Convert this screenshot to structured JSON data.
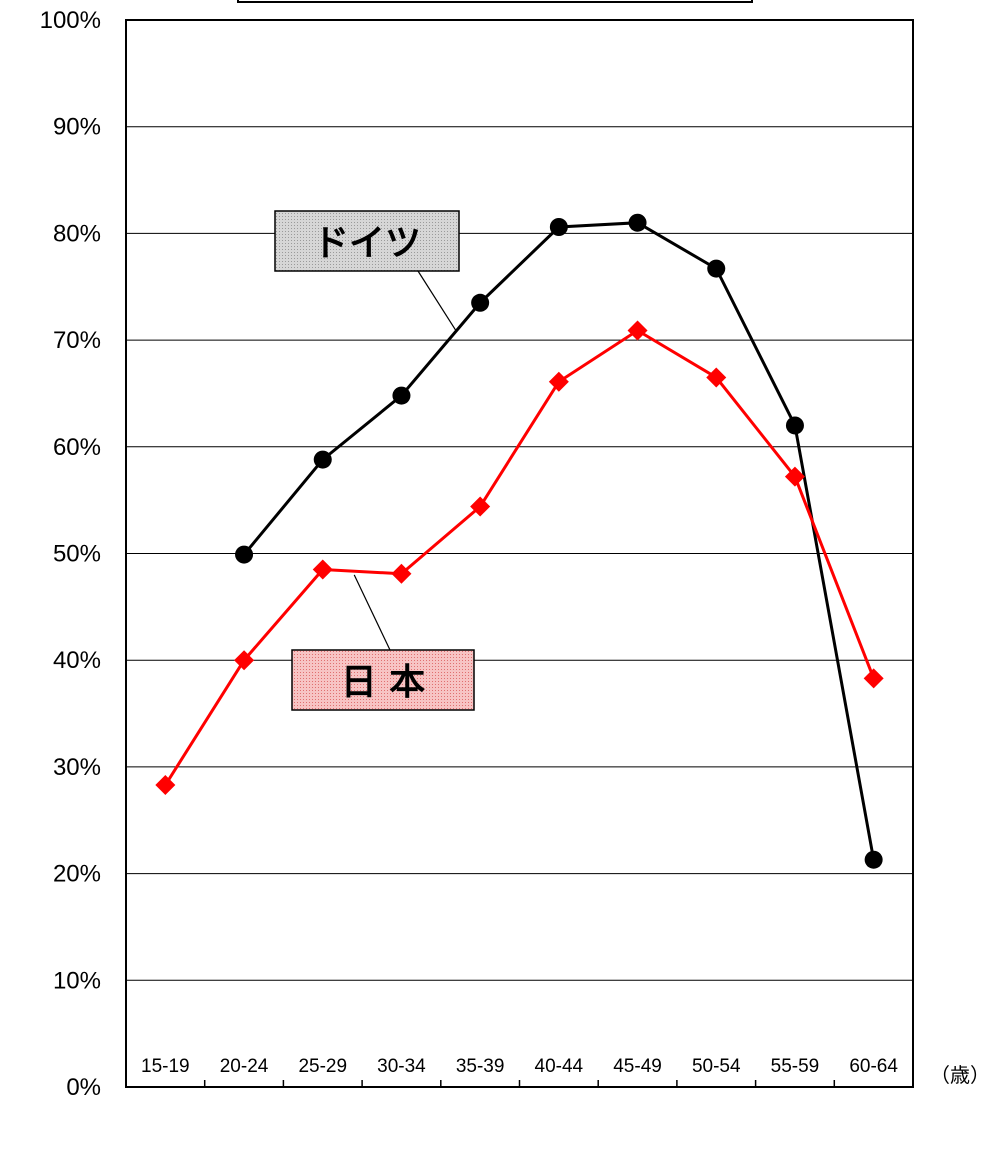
{
  "chart_data": {
    "type": "line",
    "title": "",
    "xlabel": "",
    "ylabel": "",
    "x_unit": "（歳）",
    "categories": [
      "15-19",
      "20-24",
      "25-29",
      "30-34",
      "35-39",
      "40-44",
      "45-49",
      "50-54",
      "55-59",
      "60-64"
    ],
    "y_ticks": [
      "0%",
      "10%",
      "20%",
      "30%",
      "40%",
      "50%",
      "60%",
      "70%",
      "80%",
      "90%",
      "100%"
    ],
    "ylim": [
      0,
      100
    ],
    "grid": true,
    "series": [
      {
        "name": "ドイツ",
        "color": "#000000",
        "marker": "circle",
        "label_fill": "#cccccc",
        "values": [
          null,
          49.9,
          58.8,
          64.8,
          73.5,
          80.6,
          81.0,
          76.7,
          62.0,
          21.3
        ]
      },
      {
        "name": "日 本",
        "color": "#ff0000",
        "marker": "diamond",
        "label_fill": "#f4b8b8",
        "values": [
          28.3,
          40.0,
          48.5,
          48.1,
          54.4,
          66.1,
          70.9,
          66.5,
          57.2,
          38.3
        ]
      }
    ]
  }
}
